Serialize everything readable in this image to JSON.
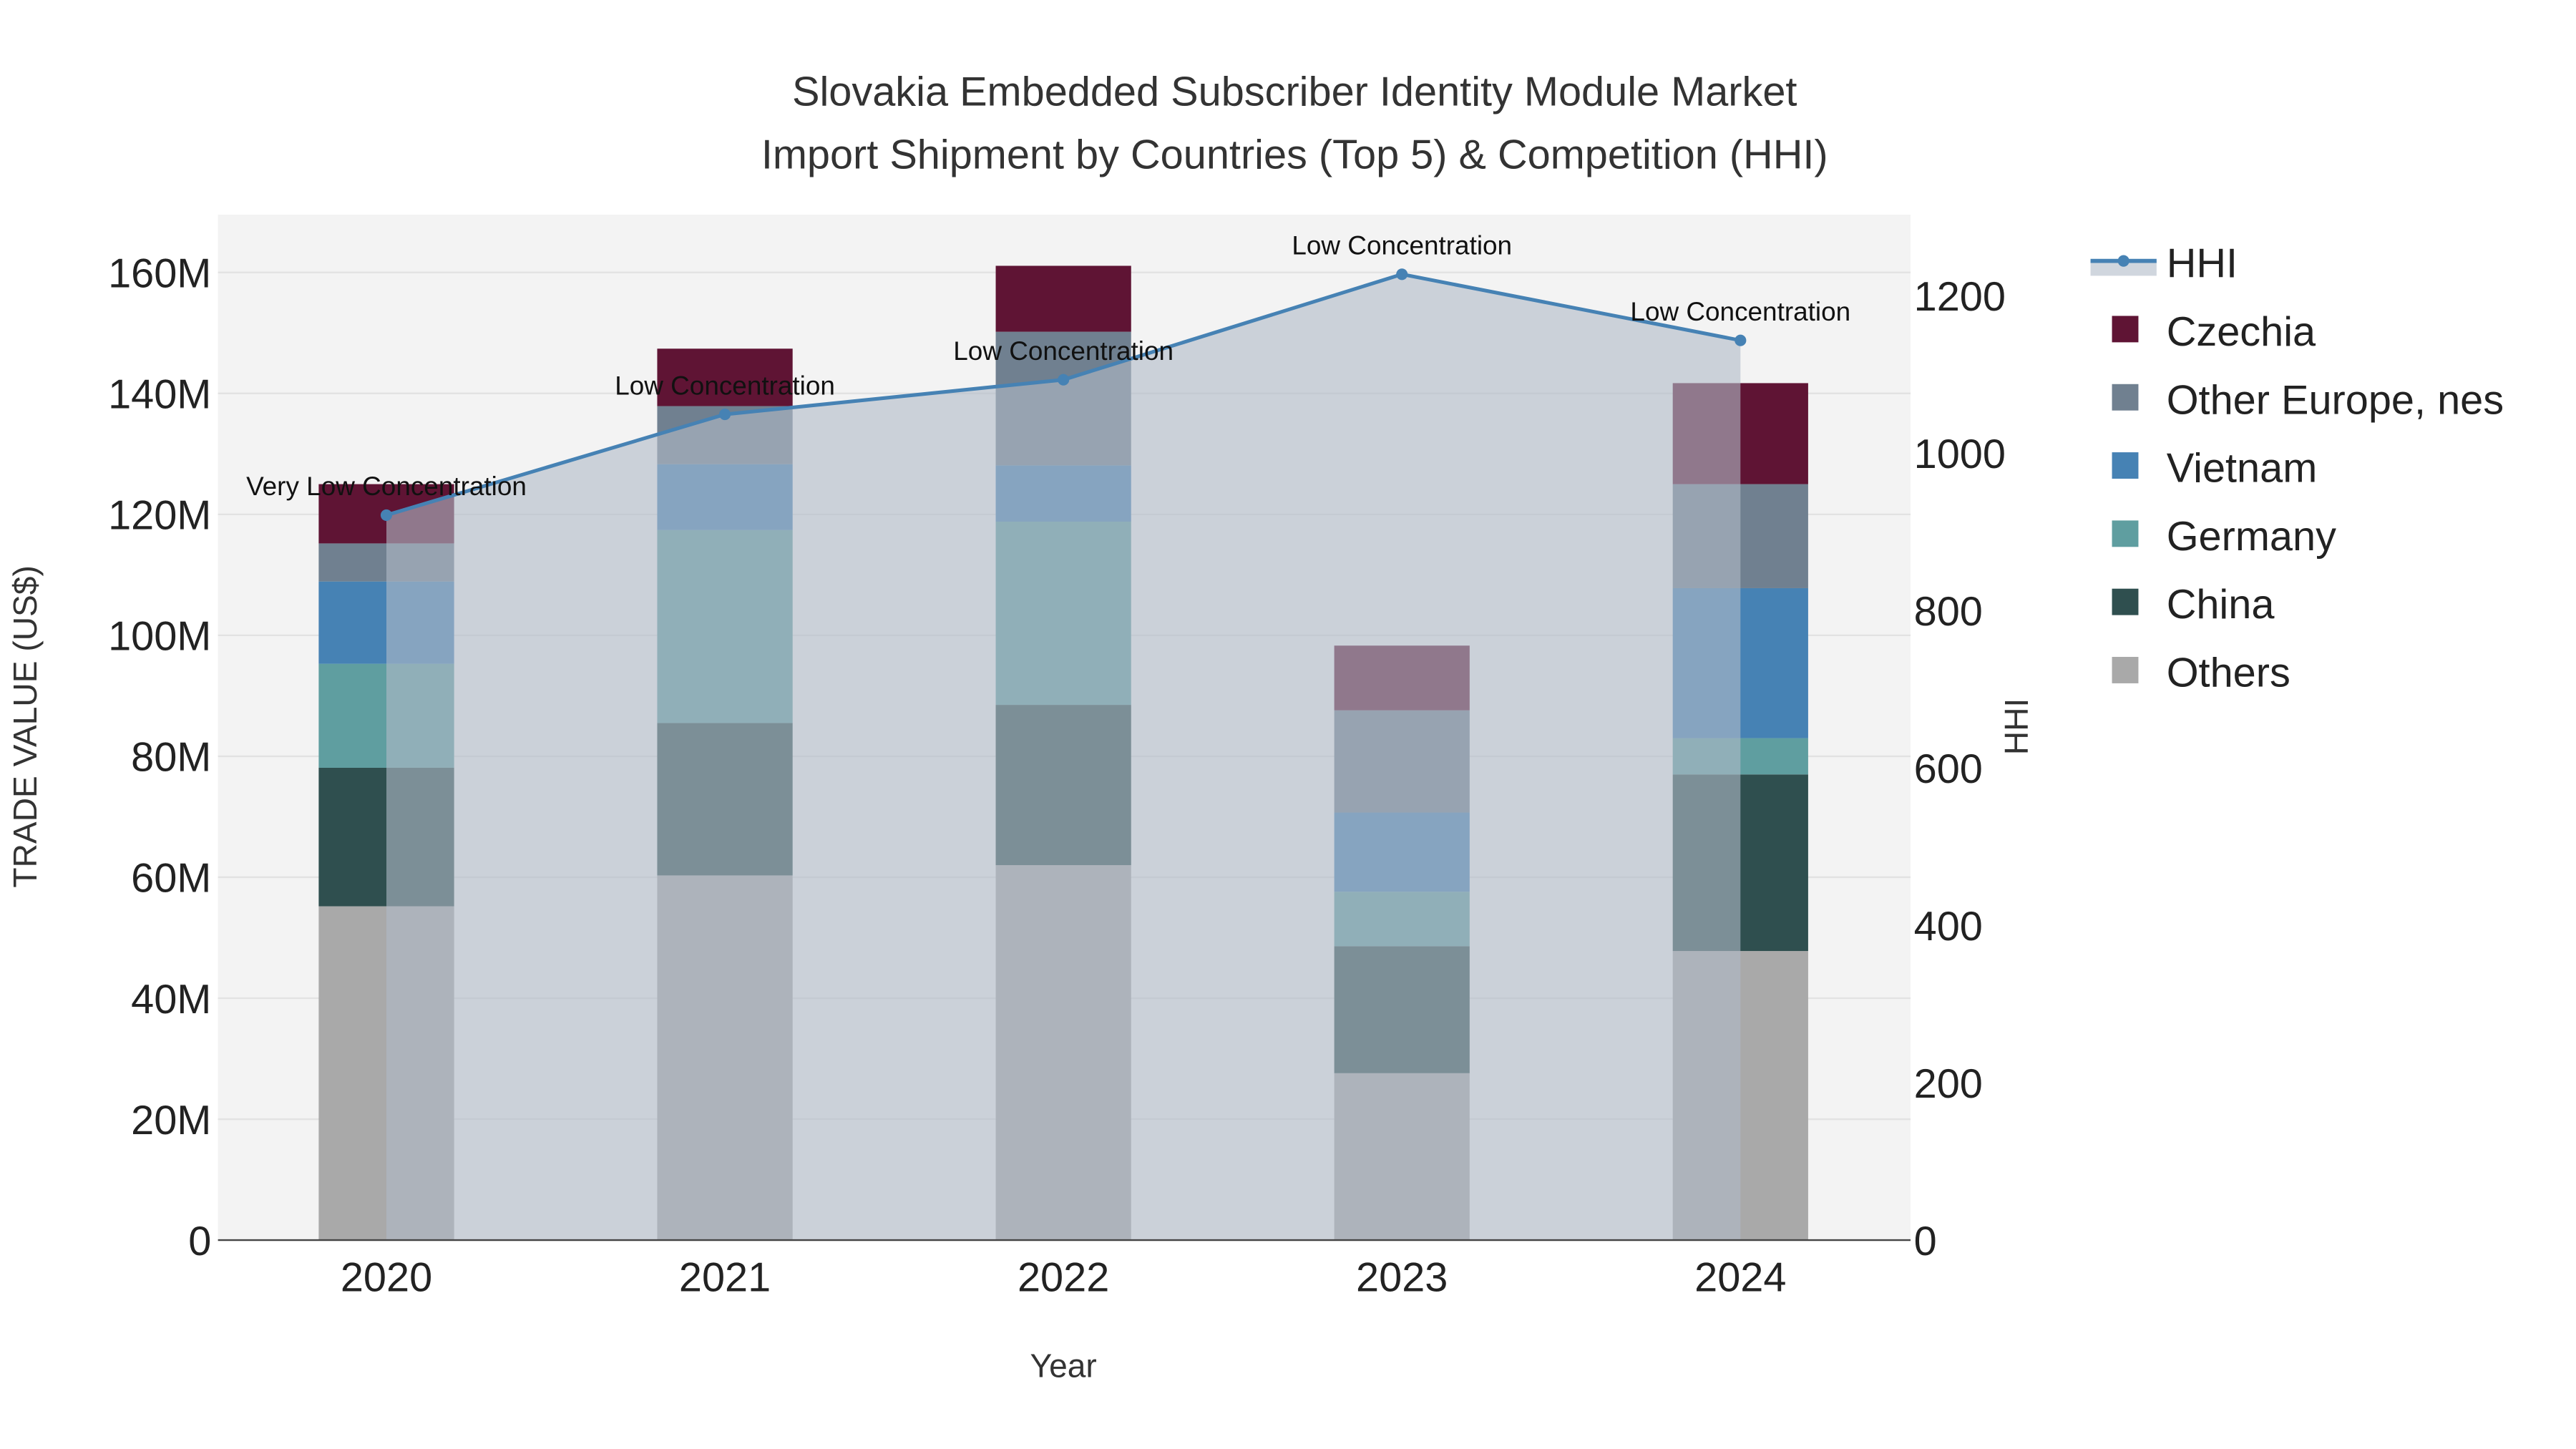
{
  "chart_data": {
    "type": "bar",
    "title_line1": "Slovakia Embedded Subscriber Identity Module Market",
    "title_line2": "Import Shipment by Countries (Top 5) & Competition (HHI)",
    "xlabel": "Year",
    "ylabel": "TRADE VALUE (US$)",
    "y2label": "HHI",
    "categories": [
      "2020",
      "2021",
      "2022",
      "2023",
      "2024"
    ],
    "ylim": [
      0,
      170
    ],
    "y_ticks": [
      0,
      20,
      40,
      60,
      80,
      100,
      120,
      140,
      160
    ],
    "y_tick_labels": [
      "0",
      "20M",
      "40M",
      "60M",
      "80M",
      "100M",
      "120M",
      "140M",
      "160M"
    ],
    "y2lim": [
      0,
      1300
    ],
    "y2_ticks": [
      0,
      200,
      400,
      600,
      800,
      1000,
      1200
    ],
    "y2_tick_labels": [
      "0",
      "200",
      "400",
      "600",
      "800",
      "1000",
      "1200"
    ],
    "value_unit": "million US$",
    "series": [
      {
        "name": "Others",
        "color": "#a9a9a9",
        "values": [
          55.2,
          60.3,
          62.0,
          27.6,
          47.8
        ]
      },
      {
        "name": "China",
        "color": "#2f4f4f",
        "values": [
          22.9,
          25.2,
          26.5,
          21.0,
          29.2
        ]
      },
      {
        "name": "Germany",
        "color": "#5f9ea0",
        "values": [
          17.2,
          31.9,
          30.3,
          9.0,
          6.0
        ]
      },
      {
        "name": "Vietnam",
        "color": "#4682b4",
        "values": [
          13.6,
          10.9,
          9.3,
          13.1,
          24.8
        ]
      },
      {
        "name": "Other Europe, nes",
        "color": "#708090",
        "values": [
          6.3,
          9.6,
          22.1,
          16.9,
          17.2
        ]
      },
      {
        "name": "Czechia",
        "color": "#5f1434",
        "values": [
          9.8,
          9.5,
          10.9,
          10.7,
          16.7
        ]
      }
    ],
    "hhi": {
      "name": "HHI",
      "color": "#4682b4",
      "values": [
        921,
        1049,
        1093,
        1227,
        1143
      ],
      "labels": [
        "Very Low Concentration",
        "Low Concentration",
        "Low Concentration",
        "Low Concentration",
        "Low Concentration"
      ]
    },
    "legend_order": [
      "HHI",
      "Czechia",
      "Other Europe, nes",
      "Vietnam",
      "Germany",
      "China",
      "Others"
    ],
    "legend_placement": "right",
    "grid": true
  }
}
